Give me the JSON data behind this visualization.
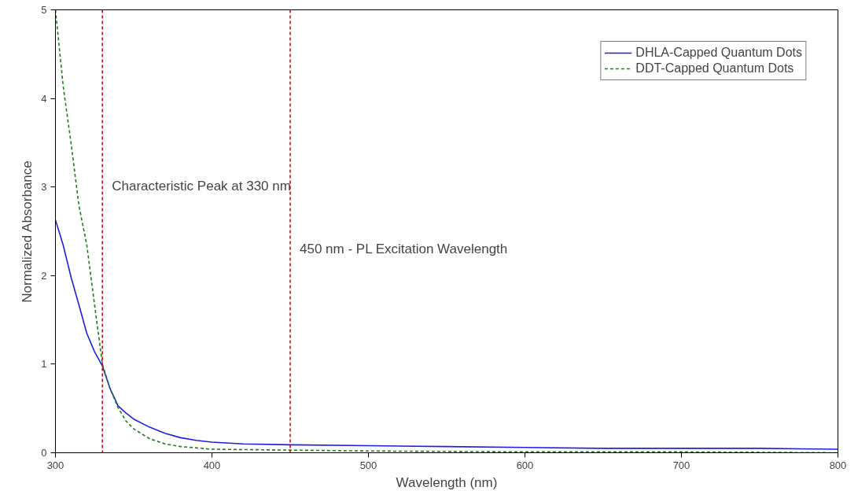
{
  "chart_data": {
    "type": "line",
    "xlabel": "Wavelength (nm)",
    "ylabel": "Normalized Absorbance",
    "xlim": [
      300,
      800
    ],
    "ylim": [
      0,
      5
    ],
    "xticks": [
      300,
      400,
      500,
      600,
      700,
      800
    ],
    "yticks": [
      0,
      1,
      2,
      3,
      4,
      5
    ],
    "grid": false,
    "legend": "top right",
    "marker": "none",
    "series": [
      {
        "name": "DHLA-Capped Quantum Dots",
        "color": "#1f1fe0",
        "line_style": "solid",
        "x": [
          300,
          305,
          310,
          315,
          320,
          325,
          330,
          335,
          340,
          345,
          350,
          360,
          370,
          380,
          390,
          400,
          420,
          450,
          500,
          550,
          600,
          650,
          700,
          750,
          800
        ],
        "values": [
          2.63,
          2.34,
          1.98,
          1.67,
          1.35,
          1.14,
          0.98,
          0.72,
          0.53,
          0.45,
          0.38,
          0.29,
          0.22,
          0.17,
          0.14,
          0.12,
          0.1,
          0.09,
          0.08,
          0.07,
          0.06,
          0.05,
          0.05,
          0.05,
          0.04
        ]
      },
      {
        "name": "DDT-Capped Quantum Dots",
        "color": "#1f7a1f",
        "line_style": "dashed",
        "x": [
          300,
          305,
          310,
          315,
          320,
          325,
          330,
          335,
          340,
          345,
          350,
          360,
          370,
          380,
          400,
          450,
          500,
          600,
          700,
          800
        ],
        "values": [
          5.0,
          4.13,
          3.49,
          2.79,
          2.35,
          1.67,
          1.0,
          0.72,
          0.51,
          0.36,
          0.27,
          0.16,
          0.1,
          0.07,
          0.04,
          0.03,
          0.02,
          0.01,
          0.01,
          0.0
        ]
      }
    ],
    "ref_lines": [
      {
        "axis": "x",
        "value": 330,
        "color": "#c00000",
        "line_style": "dashed",
        "label": "Characteristic Peak at 330 nm"
      },
      {
        "axis": "x",
        "value": 450,
        "color": "#c00000",
        "line_style": "dashed",
        "label": "450 nm - PL Excitation Wavelength"
      }
    ]
  }
}
